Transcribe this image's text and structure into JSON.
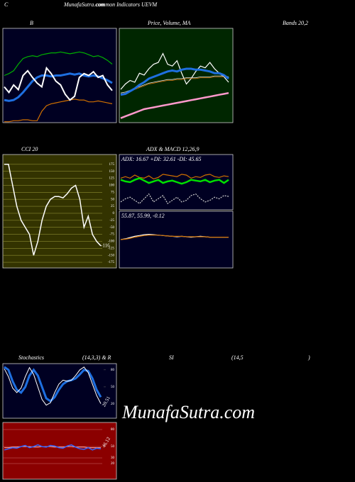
{
  "header": {
    "letter": "C",
    "site": "MunafaSutra.com",
    "subtitle": "common Indicators UEVM"
  },
  "headings": [
    "B",
    "Price, Volume, MA",
    "Bands 20,2",
    "CCI 20",
    "ADX  & MACD 12,26,9",
    "Stochastics",
    "(14,3,3) & R",
    "SI",
    "(14,5",
    ")"
  ],
  "watermark": "MunafaSutra.com",
  "chart_data": [
    {
      "type": "line",
      "ylim": [
        0,
        100
      ],
      "series": [
        {
          "color": "#00b000",
          "values": [
            50,
            52,
            55,
            62,
            68,
            70,
            71,
            70,
            72,
            73,
            74,
            74,
            75,
            74,
            73,
            74,
            75,
            74,
            72,
            70,
            71,
            69,
            66,
            62
          ]
        },
        {
          "color": "#d07000",
          "values": [
            1,
            1,
            2,
            2,
            3,
            3,
            2,
            2,
            12,
            18,
            20,
            21,
            22,
            23,
            24,
            25,
            24,
            24,
            22,
            22,
            23,
            22,
            21,
            20
          ]
        },
        {
          "color": "#1e6fe0",
          "width": 3,
          "values": [
            24,
            23,
            24,
            27,
            32,
            38,
            44,
            48,
            50,
            50,
            49,
            50,
            50,
            51,
            52,
            51,
            52,
            50,
            49,
            50,
            49,
            47,
            45,
            42
          ]
        },
        {
          "color": "#ffffff",
          "width": 2,
          "values": [
            38,
            32,
            40,
            35,
            50,
            55,
            48,
            42,
            38,
            58,
            52,
            44,
            40,
            30,
            24,
            28,
            48,
            52,
            50,
            54,
            48,
            50,
            40,
            34
          ]
        }
      ]
    },
    {
      "type": "line",
      "ylim": [
        -5,
        100
      ],
      "series": [
        {
          "color": "#ffffff",
          "values": [
            32,
            38,
            42,
            40,
            50,
            48,
            55,
            60,
            62,
            72,
            60,
            58,
            64,
            50,
            38,
            44,
            52,
            58,
            56,
            62,
            55,
            50,
            46,
            40
          ]
        },
        {
          "color": "#dddddd",
          "width": 0.8,
          "values": [
            28,
            29,
            31,
            33,
            35,
            37,
            39,
            40,
            41,
            42,
            43,
            43,
            44,
            44,
            45,
            45,
            45,
            46,
            46,
            46,
            47,
            47,
            47,
            46
          ]
        },
        {
          "color": "#d07000",
          "width": 0.8,
          "values": [
            27,
            28,
            30,
            32,
            34,
            36,
            38,
            39,
            40,
            41,
            42,
            42,
            43,
            43,
            44,
            44,
            44,
            45,
            45,
            45,
            46,
            46,
            46,
            45
          ]
        },
        {
          "color": "#1e6fe0",
          "width": 3,
          "values": [
            26,
            27,
            30,
            33,
            37,
            40,
            44,
            46,
            48,
            50,
            52,
            53,
            52,
            54,
            55,
            55,
            54,
            54,
            53,
            52,
            50,
            50,
            48,
            44
          ]
        },
        {
          "color": "#ff99cc",
          "width": 2.5,
          "values": [
            0,
            2,
            4,
            6,
            8,
            10,
            11,
            12,
            13,
            14,
            15,
            16,
            17,
            18,
            19,
            20,
            21,
            22,
            23,
            24,
            25,
            26,
            27,
            28
          ]
        }
      ]
    },
    {
      "type": "line",
      "ylim": [
        -195,
        210
      ],
      "grid": true,
      "yticks": [
        175,
        150,
        125,
        100,
        75,
        50,
        25,
        0,
        -25,
        -50,
        -75,
        -100,
        -125,
        -150,
        -175
      ],
      "series": [
        {
          "color": "#ffffff",
          "width": 1.5,
          "values": [
            175,
            175,
            100,
            25,
            -25,
            -50,
            -75,
            -150,
            -100,
            -25,
            25,
            50,
            60,
            60,
            55,
            70,
            90,
            100,
            50,
            -50,
            -10,
            -75,
            -100,
            -116
          ]
        }
      ]
    },
    {
      "type": "line",
      "ylim": [
        0,
        70
      ],
      "annotation": "ADX: 16.67 +DI: 32.61 -DI: 45.65",
      "series": [
        {
          "color": "#d07000",
          "values": [
            40,
            42,
            40,
            44,
            41,
            40,
            43,
            39,
            41,
            45,
            44,
            43,
            42,
            45,
            44,
            40,
            42,
            41,
            44,
            45,
            42,
            41,
            43,
            42
          ]
        },
        {
          "color": "#00e000",
          "width": 2.5,
          "values": [
            38,
            36,
            35,
            38,
            40,
            37,
            34,
            36,
            38,
            34,
            36,
            37,
            35,
            33,
            35,
            38,
            37,
            36,
            38,
            35,
            37,
            38,
            34,
            38
          ]
        },
        {
          "color": "#cccccc",
          "dash": true,
          "values": [
            10,
            14,
            16,
            12,
            8,
            14,
            20,
            10,
            14,
            18,
            8,
            12,
            16,
            10,
            12,
            18,
            20,
            14,
            10,
            12,
            16,
            14,
            18,
            17
          ]
        }
      ]
    },
    {
      "type": "line",
      "ylim": [
        -20,
        120
      ],
      "annotation": "55.87,  55.99,  -0.12",
      "series": [
        {
          "color": "#ffffff",
          "values": [
            50,
            52,
            55,
            58,
            60,
            62,
            63,
            62,
            61,
            60,
            59,
            58,
            57,
            58,
            57,
            56,
            57,
            58,
            57,
            56,
            56,
            56,
            56,
            56
          ]
        },
        {
          "color": "#d07000",
          "values": [
            50,
            51,
            53,
            56,
            58,
            60,
            61,
            61,
            61,
            60,
            59,
            58,
            58,
            58,
            57,
            57,
            57,
            57,
            57,
            56,
            56,
            56,
            56,
            56
          ]
        }
      ]
    },
    {
      "type": "line",
      "ylim": [
        -5,
        91
      ],
      "yticks": [
        80,
        50,
        20
      ],
      "series": [
        {
          "color": "#1e6fe0",
          "width": 3,
          "values": [
            85,
            80,
            60,
            45,
            40,
            50,
            70,
            80,
            70,
            50,
            30,
            25,
            32,
            45,
            55,
            60,
            62,
            65,
            72,
            80,
            78,
            65,
            45,
            32
          ]
        },
        {
          "color": "#ffffff",
          "width": 1,
          "values": [
            82,
            68,
            48,
            40,
            48,
            68,
            84,
            72,
            50,
            28,
            18,
            22,
            40,
            55,
            62,
            60,
            62,
            70,
            80,
            85,
            75,
            55,
            35,
            20.51
          ]
        }
      ]
    },
    {
      "type": "line",
      "ylim": [
        -7.5,
        92.5
      ],
      "yticks": [
        80,
        50,
        30,
        20
      ],
      "grid": true,
      "series": [
        {
          "color": "#ffaaaa",
          "width": 1,
          "values": [
            48,
            48,
            49,
            49,
            50,
            50,
            50,
            49,
            49,
            50,
            50,
            50,
            49,
            49,
            49,
            50,
            50,
            49,
            49,
            49,
            48,
            48,
            48,
            48
          ]
        },
        {
          "color": "#3366ff",
          "width": 1.5,
          "values": [
            44,
            46,
            48,
            47,
            50,
            52,
            48,
            50,
            53,
            50,
            49,
            52,
            51,
            48,
            47,
            51,
            53,
            49,
            46,
            45,
            48,
            44,
            47,
            46.12
          ]
        }
      ]
    }
  ]
}
